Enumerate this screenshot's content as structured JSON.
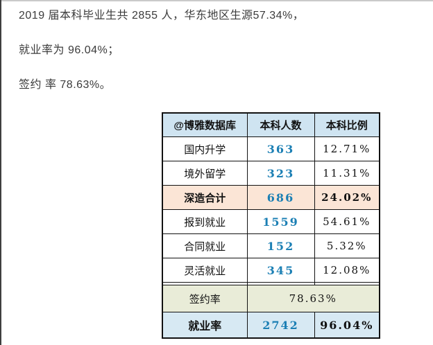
{
  "page": {
    "intro_lines": {
      "line1": "2019 届本科毕业生共 2855 人，华东地区生源57.34%，",
      "line2": "就业率为 96.04%；",
      "line3": "签约 率 78.63%。"
    }
  },
  "table": {
    "header": {
      "source": "@博雅数据库",
      "col_count": "本科人数",
      "col_ratio": "本科比例"
    },
    "rows": [
      {
        "label": "国内升学",
        "count": "363",
        "ratio": "12.71%"
      },
      {
        "label": "境外留学",
        "count": "323",
        "ratio": "11.31%"
      },
      {
        "label": "深造合计",
        "count": "686",
        "ratio": "24.02%"
      },
      {
        "label": "报到就业",
        "count": "1559",
        "ratio": "54.61%"
      },
      {
        "label": "合同就业",
        "count": "152",
        "ratio": "5.32%"
      },
      {
        "label": "灵活就业",
        "count": "345",
        "ratio": "12.08%"
      }
    ],
    "summary": {
      "sign_rate_label": "签约率",
      "sign_rate_value": "78.63%",
      "employ_rate_label": "就业率",
      "employ_rate_count": "2742",
      "employ_rate_ratio": "96.04%"
    }
  },
  "colors": {
    "header_bg": "#cfe4f1",
    "subtotal_bg": "#fbe5d6",
    "sign_rate_bg": "#e9ecd8",
    "employ_rate_bg": "#d7e9f3",
    "accent_number": "#1b7fb4",
    "border": "#111111",
    "body_text": "#3b3b3b"
  }
}
